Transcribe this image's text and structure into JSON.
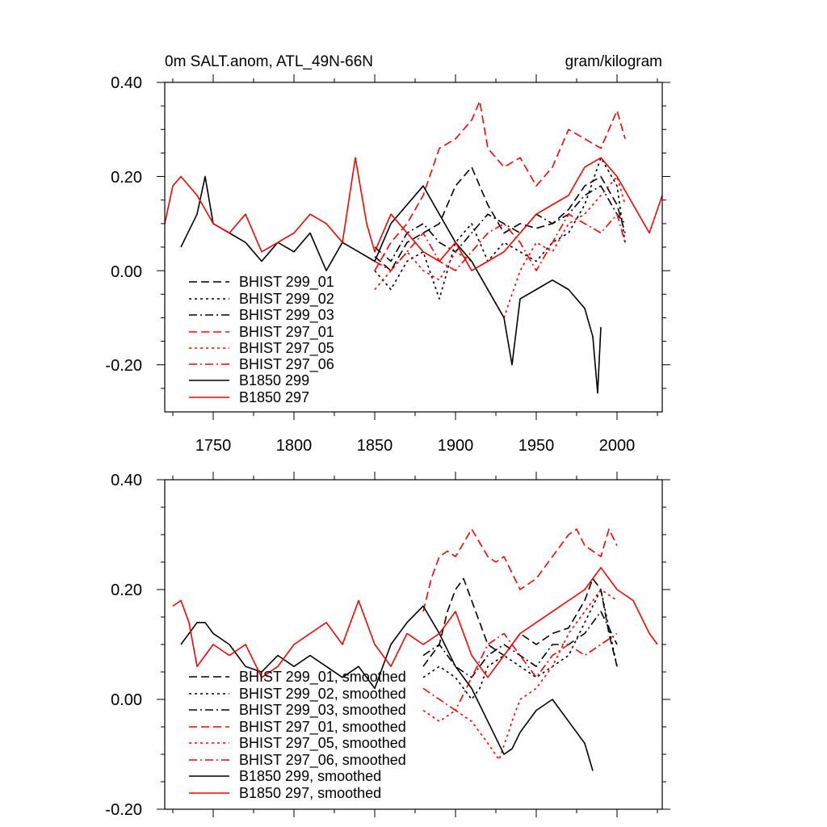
{
  "panels": [
    {
      "title_left": "0m SALT.anom, ATL_49N-66N",
      "title_right": "gram/kilogram",
      "y_ticks": [
        "0.40",
        "0.20",
        "0.00",
        "-0.20"
      ],
      "x_ticks": [
        "1750",
        "1800",
        "1850",
        "1900",
        "1950",
        "2000"
      ],
      "legend": [
        "BHIST 299_01",
        "BHIST 299_02",
        "BHIST 299_03",
        "BHIST 297_01",
        "BHIST 297_05",
        "BHIST 297_06",
        "B1850 299",
        "B1850 297"
      ]
    },
    {
      "y_ticks": [
        "0.40",
        "0.20",
        "0.00",
        "-0.20"
      ],
      "legend": [
        "BHIST 299_01, smoothed",
        "BHIST 299_02, smoothed",
        "BHIST 299_03, smoothed",
        "BHIST 297_01, smoothed",
        "BHIST 297_05, smoothed",
        "BHIST 297_06, smoothed",
        "B1850 299, smoothed",
        "B1850 297, smoothed"
      ]
    }
  ],
  "chart_data": [
    {
      "type": "line",
      "title": "0m SALT.anom, ATL_49N-66N",
      "units": "gram/kilogram",
      "xlim": [
        1720,
        2028
      ],
      "ylim": [
        -0.3,
        0.4
      ],
      "grid": false,
      "legend_position": "bottom-left",
      "series": [
        {
          "name": "BHIST 299_01",
          "color": "#000000",
          "dash": "dash",
          "x": [
            1850,
            1860,
            1870,
            1880,
            1890,
            1900,
            1910,
            1920,
            1930,
            1940,
            1950,
            1960,
            1970,
            1980,
            1990,
            2000,
            2005
          ],
          "y": [
            0.03,
            0.0,
            0.06,
            0.08,
            0.1,
            0.18,
            0.22,
            0.14,
            0.08,
            0.1,
            0.09,
            0.1,
            0.13,
            0.18,
            0.2,
            0.14,
            0.08
          ]
        },
        {
          "name": "BHIST 299_02",
          "color": "#000000",
          "dash": "dot",
          "x": [
            1850,
            1860,
            1870,
            1880,
            1890,
            1900,
            1910,
            1920,
            1930,
            1940,
            1950,
            1960,
            1970,
            1980,
            1990,
            2000,
            2005
          ],
          "y": [
            0.0,
            -0.04,
            0.02,
            0.04,
            -0.06,
            0.06,
            0.1,
            0.02,
            0.06,
            0.04,
            0.02,
            0.06,
            0.08,
            0.14,
            0.24,
            0.18,
            0.06
          ]
        },
        {
          "name": "BHIST 299_03",
          "color": "#000000",
          "dash": "dashdot",
          "x": [
            1850,
            1860,
            1870,
            1880,
            1890,
            1900,
            1910,
            1920,
            1930,
            1940,
            1950,
            1960,
            1970,
            1980,
            1990,
            2000,
            2005
          ],
          "y": [
            0.05,
            0.02,
            0.08,
            0.1,
            0.06,
            0.04,
            0.08,
            0.12,
            0.1,
            0.08,
            0.12,
            0.1,
            0.12,
            0.16,
            0.18,
            0.12,
            0.1
          ]
        },
        {
          "name": "BHIST 297_01",
          "color": "#ff0000",
          "dash": "dash",
          "x": [
            1850,
            1860,
            1870,
            1880,
            1890,
            1900,
            1905,
            1910,
            1915,
            1920,
            1930,
            1940,
            1950,
            1960,
            1970,
            1980,
            1990,
            2000,
            2005
          ],
          "y": [
            0.0,
            0.06,
            0.1,
            0.16,
            0.26,
            0.28,
            0.3,
            0.32,
            0.36,
            0.26,
            0.22,
            0.24,
            0.18,
            0.22,
            0.3,
            0.28,
            0.26,
            0.34,
            0.28
          ]
        },
        {
          "name": "BHIST 297_05",
          "color": "#ff0000",
          "dash": "dot",
          "x": [
            1850,
            1860,
            1870,
            1880,
            1890,
            1900,
            1910,
            1920,
            1930,
            1940,
            1950,
            1960,
            1970,
            1980,
            1990,
            2000,
            2005
          ],
          "y": [
            -0.04,
            0.0,
            0.04,
            0.0,
            -0.02,
            0.04,
            0.02,
            -0.04,
            -0.1,
            0.0,
            0.06,
            0.04,
            0.1,
            0.12,
            0.16,
            0.2,
            0.14
          ]
        },
        {
          "name": "BHIST 297_06",
          "color": "#ff0000",
          "dash": "dashdot",
          "x": [
            1850,
            1860,
            1870,
            1880,
            1890,
            1900,
            1910,
            1920,
            1930,
            1940,
            1950,
            1960,
            1970,
            1980,
            1990,
            2000,
            2005
          ],
          "y": [
            0.02,
            0.0,
            0.04,
            0.08,
            0.02,
            0.0,
            0.04,
            0.08,
            0.1,
            0.06,
            0.0,
            0.06,
            0.12,
            0.1,
            0.08,
            0.12,
            0.06
          ]
        },
        {
          "name": "B1850 299",
          "color": "#000000",
          "dash": "solid",
          "x": [
            1730,
            1740,
            1745,
            1750,
            1760,
            1770,
            1780,
            1790,
            1800,
            1810,
            1820,
            1830,
            1840,
            1850,
            1860,
            1870,
            1880,
            1890,
            1900,
            1910,
            1920,
            1930,
            1935,
            1940,
            1950,
            1960,
            1970,
            1980,
            1985,
            1988,
            1990
          ],
          "y": [
            0.05,
            0.12,
            0.2,
            0.1,
            0.08,
            0.06,
            0.02,
            0.06,
            0.04,
            0.08,
            0.0,
            0.06,
            0.04,
            0.02,
            0.1,
            0.14,
            0.18,
            0.12,
            0.06,
            0.02,
            -0.04,
            -0.1,
            -0.2,
            -0.06,
            -0.04,
            -0.02,
            -0.04,
            -0.08,
            -0.14,
            -0.26,
            -0.12
          ]
        },
        {
          "name": "B1850 297",
          "color": "#ff0000",
          "dash": "solid",
          "x": [
            1720,
            1725,
            1730,
            1740,
            1750,
            1760,
            1770,
            1780,
            1790,
            1800,
            1810,
            1820,
            1830,
            1838,
            1845,
            1850,
            1860,
            1870,
            1880,
            1890,
            1900,
            1910,
            1920,
            1930,
            1940,
            1950,
            1960,
            1970,
            1980,
            1990,
            2000,
            2010,
            2020,
            2028
          ],
          "y": [
            0.1,
            0.18,
            0.2,
            0.16,
            0.1,
            0.08,
            0.12,
            0.04,
            0.06,
            0.08,
            0.12,
            0.1,
            0.06,
            0.24,
            0.1,
            0.04,
            0.12,
            0.08,
            0.04,
            0.02,
            0.06,
            0.0,
            0.02,
            0.04,
            0.08,
            0.12,
            0.14,
            0.16,
            0.22,
            0.24,
            0.2,
            0.14,
            0.08,
            0.16
          ]
        }
      ]
    },
    {
      "type": "line",
      "xlim": [
        1720,
        2028
      ],
      "ylim": [
        -0.2,
        0.4
      ],
      "grid": false,
      "legend_position": "bottom-left",
      "series": [
        {
          "name": "BHIST 299_01, smoothed",
          "color": "#000000",
          "dash": "dash",
          "x": [
            1880,
            1890,
            1895,
            1900,
            1905,
            1910,
            1915,
            1920,
            1930,
            1940,
            1950,
            1960,
            1970,
            1980,
            1985,
            1990,
            1995,
            2000
          ],
          "y": [
            0.06,
            0.1,
            0.16,
            0.2,
            0.22,
            0.18,
            0.14,
            0.1,
            0.08,
            0.12,
            0.1,
            0.12,
            0.13,
            0.18,
            0.22,
            0.2,
            0.12,
            0.06
          ]
        },
        {
          "name": "BHIST 299_02, smoothed",
          "color": "#000000",
          "dash": "dot",
          "x": [
            1880,
            1890,
            1900,
            1910,
            1915,
            1920,
            1930,
            1940,
            1950,
            1960,
            1970,
            1980,
            1990,
            2000
          ],
          "y": [
            0.04,
            0.06,
            0.04,
            0.0,
            0.02,
            0.06,
            0.08,
            0.06,
            0.04,
            0.06,
            0.08,
            0.14,
            0.2,
            0.06
          ]
        },
        {
          "name": "BHIST 299_03, smoothed",
          "color": "#000000",
          "dash": "dashdot",
          "x": [
            1880,
            1890,
            1900,
            1910,
            1920,
            1930,
            1940,
            1950,
            1960,
            1970,
            1980,
            1990,
            2000
          ],
          "y": [
            0.08,
            0.1,
            0.06,
            0.04,
            0.08,
            0.1,
            0.08,
            0.06,
            0.1,
            0.1,
            0.12,
            0.16,
            0.1
          ]
        },
        {
          "name": "BHIST 297_01, smoothed",
          "color": "#ff0000",
          "dash": "dash",
          "x": [
            1880,
            1885,
            1890,
            1895,
            1900,
            1910,
            1920,
            1925,
            1930,
            1940,
            1950,
            1960,
            1970,
            1975,
            1980,
            1990,
            1995,
            2000
          ],
          "y": [
            0.16,
            0.22,
            0.26,
            0.27,
            0.26,
            0.31,
            0.26,
            0.25,
            0.26,
            0.2,
            0.22,
            0.26,
            0.3,
            0.31,
            0.28,
            0.26,
            0.31,
            0.28
          ]
        },
        {
          "name": "BHIST 297_05, smoothed",
          "color": "#ff0000",
          "dash": "dot",
          "x": [
            1880,
            1890,
            1900,
            1910,
            1920,
            1927,
            1935,
            1940,
            1950,
            1960,
            1970,
            1980,
            1990,
            2000
          ],
          "y": [
            -0.02,
            -0.04,
            -0.02,
            -0.04,
            -0.08,
            -0.11,
            -0.04,
            0.0,
            0.02,
            0.06,
            0.12,
            0.16,
            0.2,
            0.18
          ]
        },
        {
          "name": "BHIST 297_06, smoothed",
          "color": "#ff0000",
          "dash": "dashdot",
          "x": [
            1880,
            1890,
            1900,
            1910,
            1920,
            1930,
            1940,
            1950,
            1960,
            1970,
            1980,
            1990,
            2000
          ],
          "y": [
            0.02,
            0.0,
            -0.02,
            0.04,
            0.1,
            0.12,
            0.08,
            0.04,
            0.08,
            0.1,
            0.08,
            0.1,
            0.12
          ]
        },
        {
          "name": "B1850 299, smoothed",
          "color": "#000000",
          "dash": "solid",
          "x": [
            1730,
            1740,
            1745,
            1750,
            1760,
            1770,
            1780,
            1790,
            1800,
            1810,
            1820,
            1830,
            1840,
            1850,
            1860,
            1870,
            1880,
            1890,
            1900,
            1910,
            1920,
            1930,
            1935,
            1940,
            1950,
            1960,
            1970,
            1980,
            1985
          ],
          "y": [
            0.1,
            0.14,
            0.14,
            0.12,
            0.1,
            0.06,
            0.05,
            0.08,
            0.06,
            0.08,
            0.06,
            0.04,
            0.06,
            0.02,
            0.1,
            0.14,
            0.17,
            0.12,
            0.06,
            0.02,
            -0.04,
            -0.1,
            -0.09,
            -0.06,
            -0.02,
            0.0,
            -0.04,
            -0.08,
            -0.13
          ]
        },
        {
          "name": "B1850 297, smoothed",
          "color": "#ff0000",
          "dash": "solid",
          "x": [
            1725,
            1730,
            1735,
            1740,
            1750,
            1760,
            1770,
            1780,
            1790,
            1800,
            1810,
            1820,
            1830,
            1840,
            1850,
            1860,
            1870,
            1880,
            1890,
            1900,
            1910,
            1920,
            1930,
            1940,
            1950,
            1960,
            1970,
            1980,
            1990,
            2000,
            2010,
            2020,
            2025
          ],
          "y": [
            0.17,
            0.18,
            0.14,
            0.06,
            0.1,
            0.08,
            0.1,
            0.04,
            0.06,
            0.1,
            0.12,
            0.14,
            0.1,
            0.18,
            0.1,
            0.06,
            0.12,
            0.1,
            0.12,
            0.16,
            0.08,
            0.04,
            0.08,
            0.12,
            0.14,
            0.16,
            0.18,
            0.2,
            0.24,
            0.2,
            0.18,
            0.12,
            0.1
          ]
        }
      ]
    }
  ]
}
